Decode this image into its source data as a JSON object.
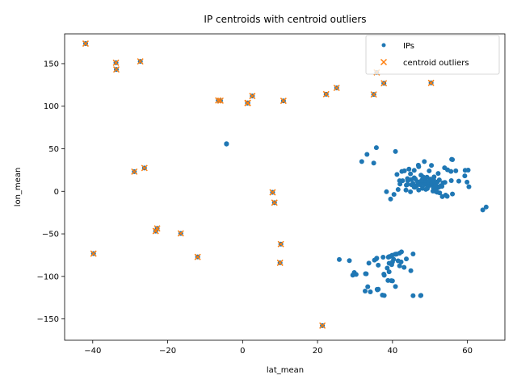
{
  "chart_data": {
    "type": "scatter",
    "title": "IP centroids with centroid outliers",
    "xlabel": "lat_mean",
    "ylabel": "lon_mean",
    "xlim": [
      -47.5,
      70
    ],
    "ylim": [
      -175,
      185
    ],
    "xticks": [
      -40,
      -20,
      0,
      20,
      40,
      60
    ],
    "yticks": [
      -150,
      -100,
      -50,
      0,
      50,
      100,
      150
    ],
    "grid": false,
    "legend_position": "top-right",
    "colors": {
      "ips": "#1f77b4",
      "outliers": "#ff7f0e"
    },
    "series": [
      {
        "name": "IPs",
        "marker": "circle",
        "points": [
          [
            -41.9,
            173.6
          ],
          [
            -33.8,
            151.1
          ],
          [
            -33.7,
            143.2
          ],
          [
            -27.3,
            152.7
          ],
          [
            -28.9,
            23.1
          ],
          [
            -26.2,
            27.4
          ],
          [
            -39.8,
            -73.2
          ],
          [
            -23.2,
            -46.7
          ],
          [
            -22.8,
            -43.6
          ],
          [
            -16.5,
            -49.5
          ],
          [
            -12.0,
            -77.1
          ],
          [
            -6.5,
            106.8
          ],
          [
            -5.9,
            106.5
          ],
          [
            1.3,
            103.7
          ],
          [
            1.4,
            103.9
          ],
          [
            2.6,
            112.0
          ],
          [
            10.9,
            106.3
          ],
          [
            22.3,
            114.1
          ],
          [
            25.1,
            121.5
          ],
          [
            35.0,
            113.8
          ],
          [
            35.8,
            139.7
          ],
          [
            37.7,
            127.0
          ],
          [
            50.3,
            127.4
          ],
          [
            8.0,
            -1.2
          ],
          [
            8.5,
            -13.3
          ],
          [
            10.2,
            -62.0
          ],
          [
            10.0,
            -84.0
          ],
          [
            21.3,
            -157.8
          ],
          [
            -4.3,
            55.5
          ],
          [
            -4.3,
            55.9
          ],
          [
            33.2,
            43.4
          ],
          [
            35.7,
            51.3
          ],
          [
            35.0,
            33.2
          ],
          [
            31.8,
            35.0
          ],
          [
            40.8,
            46.8
          ],
          [
            39.5,
            -9.1
          ],
          [
            38.4,
            -0.5
          ],
          [
            40.4,
            -3.7
          ],
          [
            41.5,
            2.1
          ],
          [
            41.2,
            19.8
          ],
          [
            42.5,
            23.3
          ],
          [
            43.2,
            24.1
          ],
          [
            44.8,
            20.5
          ],
          [
            44.4,
            26.1
          ],
          [
            45.8,
            15.9
          ],
          [
            45.8,
            24.6
          ],
          [
            46.9,
            30.7
          ],
          [
            47.6,
            19.0
          ],
          [
            48.2,
            16.4
          ],
          [
            48.5,
            35.0
          ],
          [
            48.7,
            13.0
          ],
          [
            48.9,
            2.3
          ],
          [
            49.8,
            24.0
          ],
          [
            50.1,
            8.7
          ],
          [
            50.4,
            30.5
          ],
          [
            50.9,
            4.4
          ],
          [
            51.1,
            17.0
          ],
          [
            51.5,
            -0.1
          ],
          [
            52.2,
            21.0
          ],
          [
            52.4,
            4.9
          ],
          [
            52.5,
            13.4
          ],
          [
            53.3,
            -6.3
          ],
          [
            53.5,
            10.0
          ],
          [
            53.9,
            27.6
          ],
          [
            54.7,
            25.3
          ],
          [
            55.7,
            12.6
          ],
          [
            55.8,
            37.6
          ],
          [
            56.9,
            24.1
          ],
          [
            57.7,
            12.0
          ],
          [
            59.3,
            18.1
          ],
          [
            59.4,
            24.7
          ],
          [
            59.9,
            10.8
          ],
          [
            60.2,
            24.9
          ],
          [
            60.4,
            5.3
          ],
          [
            64.1,
            -21.9
          ],
          [
            65.0,
            -18.5
          ],
          [
            56.0,
            37.2
          ],
          [
            55.6,
            23.3
          ],
          [
            47.2,
            8.5
          ],
          [
            46.5,
            6.6
          ],
          [
            45.5,
            9.2
          ],
          [
            44.1,
            12.4
          ],
          [
            43.7,
            7.3
          ],
          [
            45.1,
            7.7
          ],
          [
            46.2,
            6.1
          ],
          [
            47.5,
            7.6
          ],
          [
            48.1,
            11.6
          ],
          [
            49.0,
            8.4
          ],
          [
            49.6,
            6.1
          ],
          [
            50.7,
            7.1
          ],
          [
            50.9,
            6.9
          ],
          [
            51.2,
            4.4
          ],
          [
            51.9,
            4.5
          ],
          [
            52.1,
            5.1
          ],
          [
            52.6,
            -1.9
          ],
          [
            53.0,
            6.6
          ],
          [
            54.0,
            10.5
          ],
          [
            49.4,
            11.1
          ],
          [
            48.4,
            10.9
          ],
          [
            47.8,
            13.0
          ],
          [
            46.1,
            14.5
          ],
          [
            45.0,
            13.8
          ],
          [
            44.0,
            15.0
          ],
          [
            42.7,
            12.5
          ],
          [
            41.9,
            12.5
          ],
          [
            50.5,
            9.9
          ],
          [
            51.3,
            9.5
          ],
          [
            51.5,
            7.4
          ],
          [
            51.0,
            13.7
          ],
          [
            50.1,
            14.4
          ],
          [
            49.2,
            16.6
          ],
          [
            48.1,
            17.1
          ],
          [
            47.0,
            28.9
          ],
          [
            46.0,
            4.8
          ],
          [
            45.8,
            4.9
          ],
          [
            44.8,
            -0.6
          ],
          [
            43.6,
            1.4
          ],
          [
            48.6,
            7.8
          ],
          [
            49.3,
            3.2
          ],
          [
            52.7,
            6.0
          ],
          [
            53.2,
            5.8
          ],
          [
            51.9,
            -1.0
          ],
          [
            51.7,
            2.1
          ],
          [
            56.0,
            -3.2
          ],
          [
            54.2,
            -4.5
          ],
          [
            44.0,
            8.0
          ],
          [
            42.0,
            8.5
          ],
          [
            50.8,
            0.3
          ],
          [
            54.6,
            -5.9
          ],
          [
            52.0,
            11.0
          ],
          [
            48.0,
            3.5
          ],
          [
            47.0,
            1.5
          ],
          [
            46.7,
            11.3
          ],
          [
            40.9,
            -73.9
          ],
          [
            40.7,
            -74.0
          ],
          [
            41.9,
            -72.7
          ],
          [
            42.4,
            -71.1
          ],
          [
            43.7,
            -79.4
          ],
          [
            45.5,
            -73.6
          ],
          [
            39.0,
            -77.0
          ],
          [
            39.3,
            -76.6
          ],
          [
            38.9,
            -77.4
          ],
          [
            39.9,
            -75.2
          ],
          [
            41.5,
            -81.7
          ],
          [
            41.9,
            -87.6
          ],
          [
            42.3,
            -83.0
          ],
          [
            44.9,
            -93.3
          ],
          [
            39.1,
            -84.5
          ],
          [
            40.0,
            -83.0
          ],
          [
            39.8,
            -86.2
          ],
          [
            38.6,
            -90.2
          ],
          [
            39.1,
            -94.6
          ],
          [
            33.7,
            -84.4
          ],
          [
            35.2,
            -80.8
          ],
          [
            36.2,
            -86.8
          ],
          [
            33.4,
            -112.1
          ],
          [
            32.7,
            -117.2
          ],
          [
            34.1,
            -118.2
          ],
          [
            37.8,
            -122.4
          ],
          [
            37.3,
            -121.9
          ],
          [
            47.6,
            -122.3
          ],
          [
            45.5,
            -122.7
          ],
          [
            39.7,
            -105.0
          ],
          [
            40.8,
            -111.9
          ],
          [
            36.2,
            -115.1
          ],
          [
            32.8,
            -96.8
          ],
          [
            29.8,
            -95.4
          ],
          [
            30.3,
            -97.7
          ],
          [
            29.4,
            -98.5
          ],
          [
            25.8,
            -80.2
          ],
          [
            28.5,
            -81.4
          ],
          [
            35.8,
            -78.6
          ],
          [
            37.5,
            -77.4
          ],
          [
            35.9,
            -115.2
          ],
          [
            35.7,
            -79.3
          ],
          [
            36.0,
            -115.8
          ],
          [
            37.7,
            -97.3
          ],
          [
            47.5,
            -122.6
          ],
          [
            40.0,
            -105.2
          ],
          [
            38.8,
            -104.8
          ],
          [
            37.8,
            -98.6
          ],
          [
            33.0,
            -97.0
          ],
          [
            43.1,
            -89.4
          ],
          [
            41.1,
            -73.8
          ],
          [
            40.3,
            -79.9
          ]
        ]
      },
      {
        "name": "centroid outliers",
        "marker": "x",
        "points": [
          [
            -41.9,
            173.6
          ],
          [
            -33.8,
            151.1
          ],
          [
            -33.7,
            143.2
          ],
          [
            -27.3,
            152.7
          ],
          [
            -28.9,
            23.1
          ],
          [
            -26.2,
            27.4
          ],
          [
            -39.8,
            -73.2
          ],
          [
            -23.2,
            -46.7
          ],
          [
            -22.8,
            -43.6
          ],
          [
            -16.5,
            -49.5
          ],
          [
            -12.0,
            -77.1
          ],
          [
            -6.5,
            106.8
          ],
          [
            -5.9,
            106.5
          ],
          [
            1.3,
            103.7
          ],
          [
            1.4,
            103.9
          ],
          [
            2.6,
            112.0
          ],
          [
            10.9,
            106.3
          ],
          [
            22.3,
            114.1
          ],
          [
            25.1,
            121.5
          ],
          [
            35.0,
            113.8
          ],
          [
            35.8,
            139.7
          ],
          [
            37.7,
            127.0
          ],
          [
            50.3,
            127.4
          ],
          [
            8.0,
            -1.2
          ],
          [
            8.5,
            -13.3
          ],
          [
            10.2,
            -62.0
          ],
          [
            10.0,
            -84.0
          ],
          [
            21.3,
            -157.8
          ]
        ]
      }
    ]
  }
}
